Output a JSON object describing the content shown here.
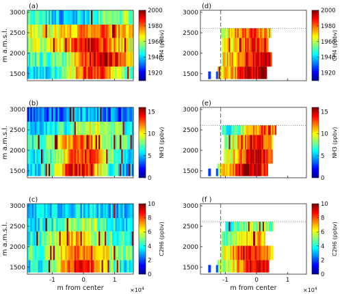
{
  "figure": {
    "x_axis_label": "m from center",
    "x_exponent_label": "×10",
    "x_exponent_power": "4",
    "y_axis_label": "m a.m.s.l."
  },
  "chart_data": [
    {
      "type": "heatmap",
      "panel_label": "(a)",
      "ylabel": "m a.m.s.l.",
      "xlabel": "",
      "xlim": [
        -18000,
        16000
      ],
      "ylim": [
        1330,
        3050
      ],
      "yticks": [
        1500,
        2000,
        2500,
        3000
      ],
      "xticks": [
        -10000,
        0,
        10000
      ],
      "x_tick_labels": [
        "",
        "",
        ""
      ],
      "altitude_levels": [
        1500,
        1850,
        2200,
        2550,
        2850
      ],
      "colorbar": {
        "label": "CH4 (ppbv)",
        "min": 1910,
        "max": 2000,
        "ticks": [
          1920,
          1940,
          1960,
          1980,
          2000
        ]
      }
    },
    {
      "type": "heatmap",
      "panel_label": "(d)",
      "ylabel": "",
      "xlabel": "",
      "xlim": [
        -18000,
        16000
      ],
      "ylim": [
        1330,
        3050
      ],
      "yticks": [
        1500,
        2000,
        2500,
        3000
      ],
      "xticks": [
        -10000,
        0,
        10000
      ],
      "x_tick_labels": [
        "",
        "",
        ""
      ],
      "boundary_altitude": 2610,
      "dashed_line_x": -11500,
      "altitude_levels": [
        1500,
        1850,
        2200,
        2550
      ],
      "colorbar": {
        "label": "CH4 (ppbv)",
        "min": 1910,
        "max": 2000,
        "ticks": [
          1920,
          1940,
          1960,
          1980,
          2000
        ]
      }
    },
    {
      "type": "heatmap",
      "panel_label": "(b)",
      "ylabel": "m a.m.s.l.",
      "xlabel": "",
      "xlim": [
        -18000,
        16000
      ],
      "ylim": [
        1330,
        3050
      ],
      "yticks": [
        1500,
        2000,
        2500,
        3000
      ],
      "xticks": [
        -10000,
        0,
        10000
      ],
      "x_tick_labels": [
        "",
        "",
        ""
      ],
      "altitude_levels": [
        1500,
        1850,
        2200,
        2550,
        2850
      ],
      "colorbar": {
        "label": "NH3 (ppbv)",
        "min": 0,
        "max": 16,
        "ticks": [
          0,
          5,
          10,
          15
        ]
      }
    },
    {
      "type": "heatmap",
      "panel_label": "(e)",
      "ylabel": "",
      "xlabel": "",
      "xlim": [
        -18000,
        16000
      ],
      "ylim": [
        1330,
        3050
      ],
      "yticks": [
        1500,
        2000,
        2500,
        3000
      ],
      "xticks": [
        -10000,
        0,
        10000
      ],
      "x_tick_labels": [
        "",
        "",
        ""
      ],
      "boundary_altitude": 2610,
      "dashed_line_x": -11500,
      "altitude_levels": [
        1500,
        1850,
        2200,
        2550
      ],
      "colorbar": {
        "label": "NH3 (ppbv)",
        "min": 0,
        "max": 16,
        "ticks": [
          0,
          5,
          10,
          15
        ]
      }
    },
    {
      "type": "heatmap",
      "panel_label": "(c)",
      "ylabel": "m a.m.s.l.",
      "xlabel": "m from center",
      "xlim": [
        -18000,
        16000
      ],
      "ylim": [
        1330,
        3050
      ],
      "yticks": [
        1500,
        2000,
        2500,
        3000
      ],
      "xticks": [
        -10000,
        0,
        10000
      ],
      "x_tick_labels": [
        "-1",
        "0",
        "1"
      ],
      "altitude_levels": [
        1500,
        1850,
        2200,
        2550,
        2850
      ],
      "colorbar": {
        "label": "C2H6 (ppbv)",
        "min": 0,
        "max": 10,
        "ticks": [
          0,
          2,
          4,
          6,
          8,
          10
        ]
      }
    },
    {
      "type": "heatmap",
      "panel_label": "(f )",
      "ylabel": "",
      "xlabel": "m from center",
      "xlim": [
        -18000,
        16000
      ],
      "ylim": [
        1330,
        3050
      ],
      "yticks": [
        1500,
        2000,
        2500,
        3000
      ],
      "xticks": [
        -10000,
        0,
        10000
      ],
      "x_tick_labels": [
        "-1",
        "0",
        "1"
      ],
      "boundary_altitude": 2610,
      "dashed_line_x": -11500,
      "altitude_levels": [
        1500,
        1850,
        2200,
        2550
      ],
      "colorbar": {
        "label": "C2H6 (ppbv)",
        "min": 0,
        "max": 10,
        "ticks": [
          0,
          2,
          4,
          6,
          8,
          10
        ]
      }
    }
  ]
}
